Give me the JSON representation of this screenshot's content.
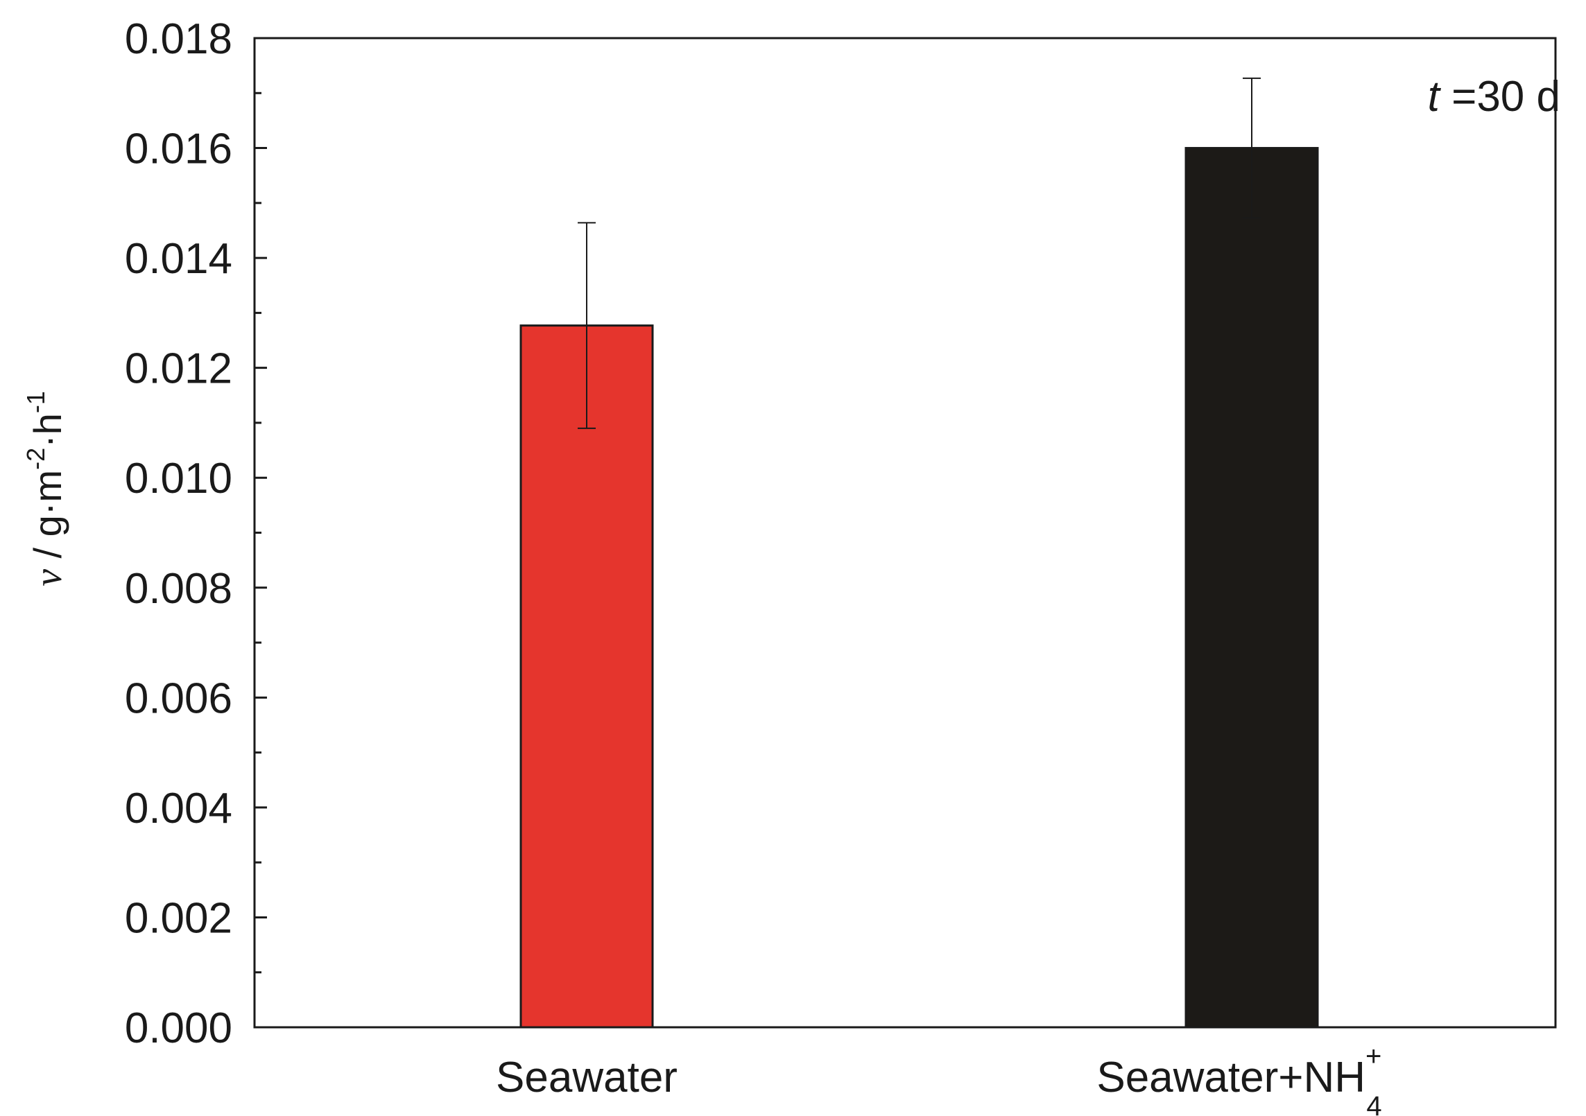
{
  "chart_data": {
    "type": "bar",
    "categories": [
      "Seawater",
      "Seawater+NH"
    ],
    "category_labels": [
      {
        "text": "Seawater",
        "sup": "",
        "sub": ""
      },
      {
        "text": "Seawater+NH",
        "sup": "+",
        "sub": "4"
      }
    ],
    "values": [
      0.01277,
      0.016
    ],
    "errors": [
      0.00187,
      0.00127
    ],
    "colors": [
      "#e5352d",
      "#1c1a17"
    ],
    "ylabel": {
      "var": "ν",
      "text": " / g·m",
      "sup1": "-2",
      "mid": "·h",
      "sup2": "-1"
    },
    "ylim": [
      0,
      0.018
    ],
    "yticks": [
      "0.000",
      "0.002",
      "0.004",
      "0.006",
      "0.008",
      "0.010",
      "0.012",
      "0.014",
      "0.016",
      "0.018"
    ],
    "annotation": {
      "var": "t",
      "text": " =30 d"
    },
    "grid": false
  }
}
